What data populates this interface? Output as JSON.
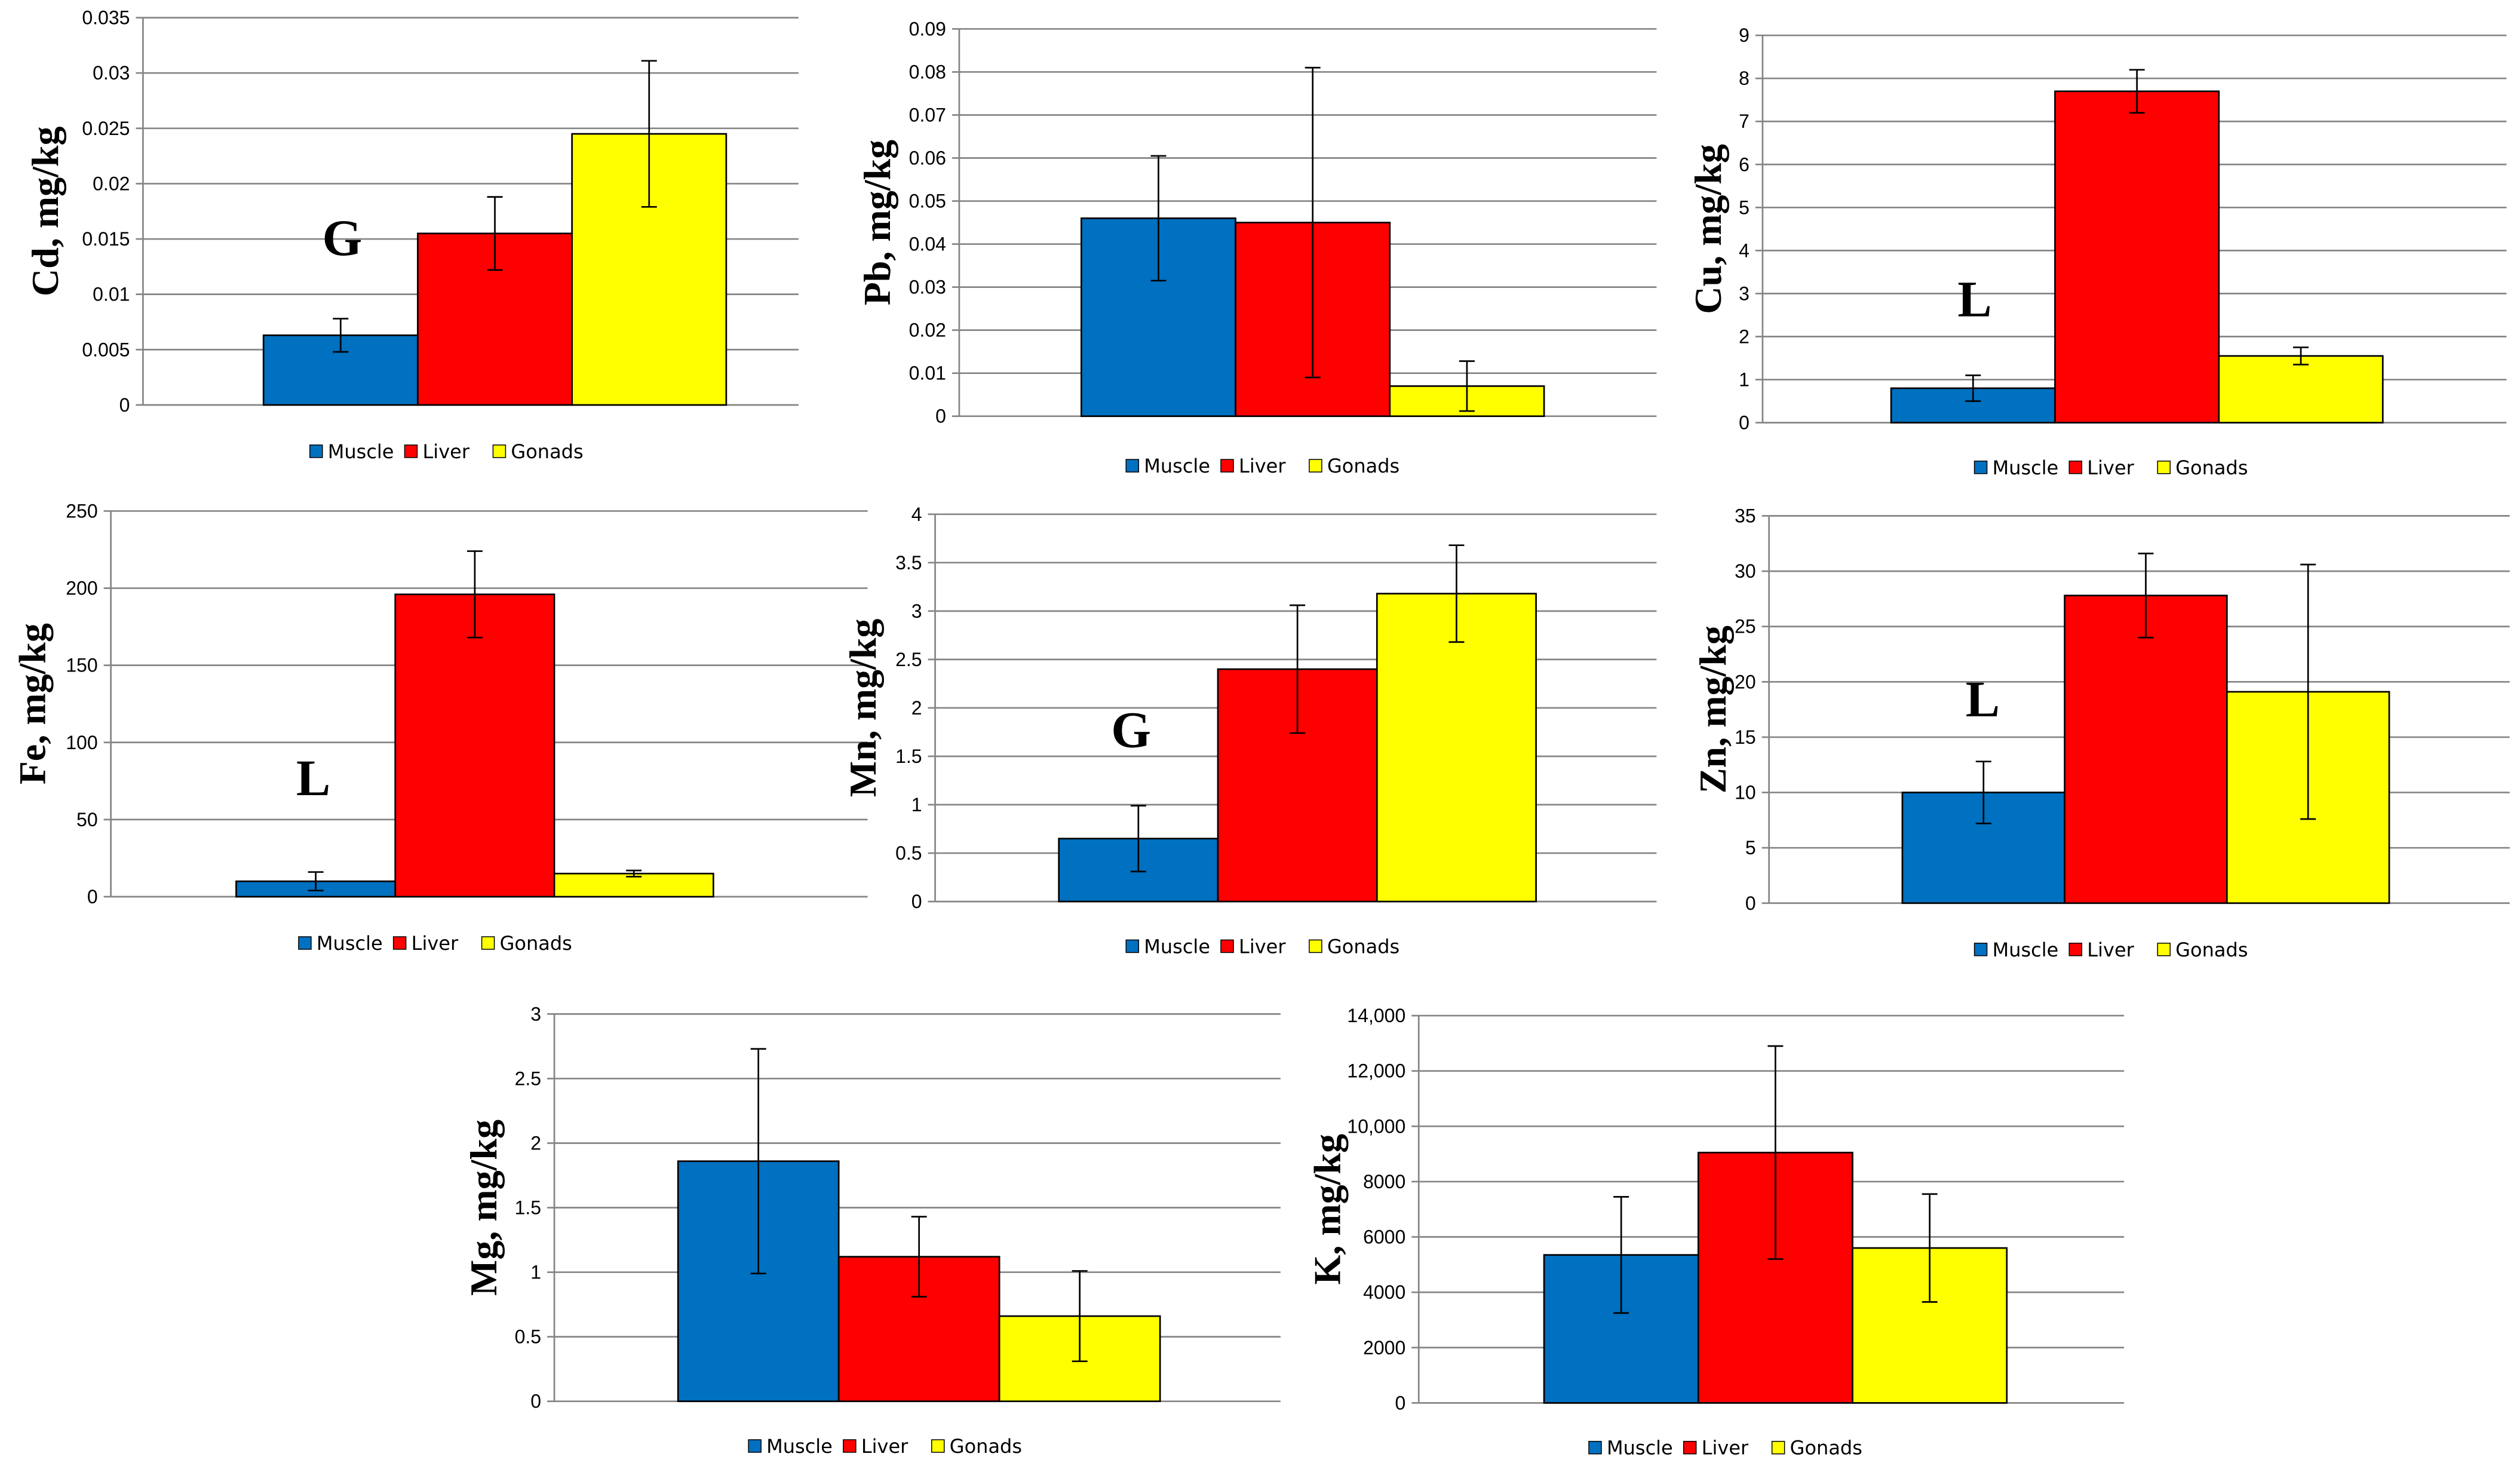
{
  "legend": {
    "series": [
      "Muscle",
      "Liver",
      "Gonads"
    ],
    "colors": [
      "#0070C0",
      "#FF0000",
      "#FFFF00"
    ]
  },
  "chart_data": [
    {
      "type": "bar",
      "ylabel": "Cd, mg/kg",
      "categories": [
        "Muscle",
        "Liver",
        "Gonads"
      ],
      "values": [
        0.0063,
        0.0155,
        0.0245
      ],
      "errors": [
        0.0015,
        0.0033,
        0.0066
      ],
      "ylim": [
        0,
        0.035
      ],
      "yticks": [
        "0",
        "0.005",
        "0.01",
        "0.015",
        "0.02",
        "0.025",
        "0.03",
        "0.035"
      ],
      "annotation": "G",
      "legend_labels": [
        "Muscle",
        "Liver",
        "Gonads"
      ]
    },
    {
      "type": "bar",
      "ylabel": "Pb, mg/kg",
      "categories": [
        "Muscle",
        "Liver",
        "Gonads"
      ],
      "values": [
        0.046,
        0.045,
        0.007
      ],
      "errors": [
        0.0145,
        0.036,
        0.0058
      ],
      "ylim": [
        0,
        0.09
      ],
      "yticks": [
        "0",
        "0.01",
        "0.02",
        "0.03",
        "0.04",
        "0.05",
        "0.06",
        "0.07",
        "0.08",
        "0.09"
      ],
      "annotation": "",
      "legend_labels": [
        "Muscle",
        "Liver",
        "Gonads"
      ]
    },
    {
      "type": "bar",
      "ylabel": "Cu, mg/kg",
      "categories": [
        "Muscle",
        "Liver",
        "Gonads"
      ],
      "values": [
        0.8,
        7.7,
        1.55
      ],
      "errors": [
        0.3,
        0.5,
        0.2
      ],
      "ylim": [
        0,
        9
      ],
      "yticks": [
        "0",
        "1",
        "2",
        "3",
        "4",
        "5",
        "6",
        "7",
        "8",
        "9"
      ],
      "annotation": "L",
      "legend_labels": [
        "Muscle",
        "Liver",
        "Gonads"
      ]
    },
    {
      "type": "bar",
      "ylabel": "Fe, mg/kg",
      "categories": [
        "Muscle",
        "Liver",
        "Gonads"
      ],
      "values": [
        10,
        196,
        15
      ],
      "errors": [
        6,
        28,
        2
      ],
      "ylim": [
        0,
        250
      ],
      "yticks": [
        "0",
        "50",
        "100",
        "150",
        "200",
        "250"
      ],
      "annotation": "L",
      "legend_labels": [
        "Muscle",
        "Liver",
        "Gonads"
      ]
    },
    {
      "type": "bar",
      "ylabel": "Mn, mg/kg",
      "categories": [
        "Muscle",
        "Liver",
        "Gonads"
      ],
      "values": [
        0.65,
        2.4,
        3.18
      ],
      "errors": [
        0.34,
        0.66,
        0.5
      ],
      "ylim": [
        0,
        4
      ],
      "yticks": [
        "0",
        "0.5",
        "1",
        "1.5",
        "2",
        "2.5",
        "3",
        "3.5",
        "4"
      ],
      "annotation": "G",
      "legend_labels": [
        "Muscle",
        "Liver",
        "Gonads"
      ]
    },
    {
      "type": "bar",
      "ylabel": "Zn, mg/kg",
      "categories": [
        "Muscle",
        "Liver",
        "Gonads"
      ],
      "values": [
        10,
        27.8,
        19.1
      ],
      "errors": [
        2.8,
        3.8,
        11.5
      ],
      "ylim": [
        0,
        35
      ],
      "yticks": [
        "0",
        "5",
        "10",
        "15",
        "20",
        "25",
        "30",
        "35"
      ],
      "annotation": "L",
      "legend_labels": [
        "Muscle",
        "Liver",
        "Gonads"
      ]
    },
    {
      "type": "bar",
      "ylabel": "Mg, mg/kg",
      "categories": [
        "Muscle",
        "Liver",
        "Gonads"
      ],
      "values": [
        1.86,
        1.12,
        0.66
      ],
      "errors": [
        0.87,
        0.31,
        0.35
      ],
      "ylim": [
        0,
        3
      ],
      "yticks": [
        "0",
        "0.5",
        "1",
        "1.5",
        "2",
        "2.5",
        "3"
      ],
      "annotation": "",
      "legend_labels": [
        "Muscle",
        "Liver",
        "Gonads"
      ]
    },
    {
      "type": "bar",
      "ylabel": "K, mg/kg",
      "categories": [
        "Muscle",
        "Liver",
        "Gonads"
      ],
      "values": [
        5350,
        9050,
        5600
      ],
      "errors": [
        2100,
        3850,
        1950
      ],
      "ylim": [
        0,
        14000
      ],
      "yticks": [
        "0",
        "2000",
        "4000",
        "6000",
        "8000",
        "10,000",
        "12,000",
        "14,000"
      ],
      "annotation": "",
      "legend_labels": [
        "Muscle",
        "Liver",
        "Gonads"
      ]
    }
  ]
}
